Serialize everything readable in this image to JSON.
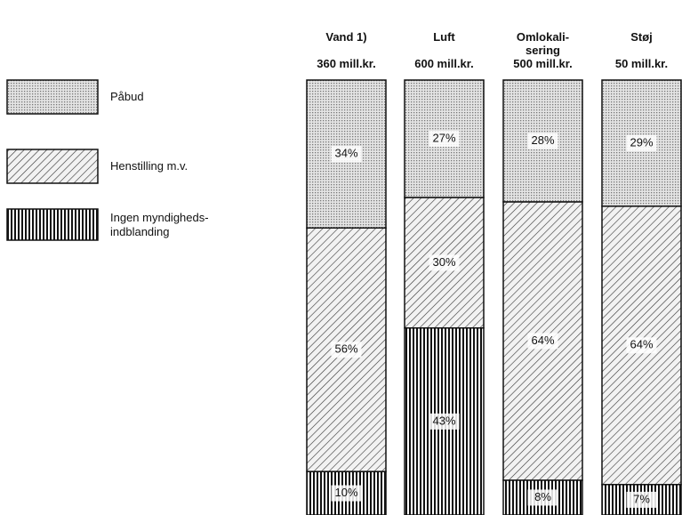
{
  "chart_data": {
    "type": "stacked_bar",
    "categories": [
      "Vand 1)",
      "Luft",
      "Omlokali-\nsering",
      "Støj"
    ],
    "totals": [
      "360 mill.kr.",
      "600 mill.kr.",
      "500 mill.kr.",
      "50 mill.kr."
    ],
    "ylim": [
      0,
      100
    ],
    "series": [
      {
        "name": "Påbud",
        "values": [
          34,
          27,
          28,
          29
        ],
        "value_labels": [
          "34%",
          "27%",
          "28%",
          "29%"
        ]
      },
      {
        "name": "Henstilling m.v.",
        "values": [
          56,
          30,
          64,
          64
        ],
        "value_labels": [
          "56%",
          "30%",
          "64%",
          "64%"
        ]
      },
      {
        "name": "Ingen myndigheds-\nindblanding",
        "values": [
          10,
          43,
          8,
          7
        ],
        "value_labels": [
          "10%",
          "43%",
          "8%",
          "7%"
        ]
      }
    ]
  }
}
